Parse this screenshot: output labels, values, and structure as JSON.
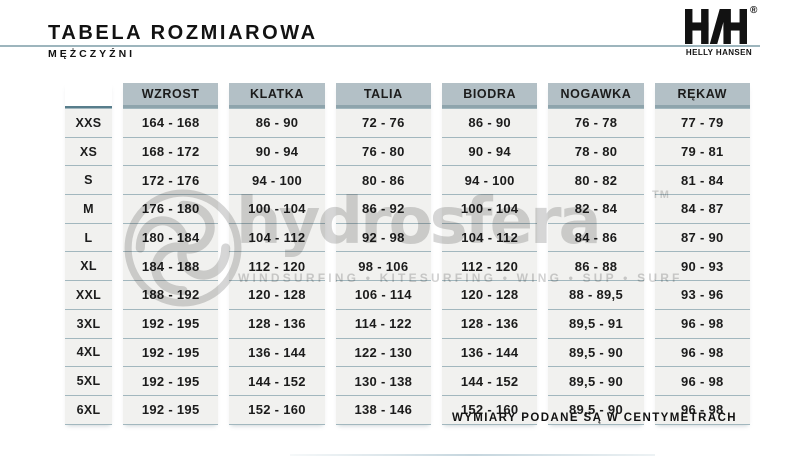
{
  "header": {
    "title": "TABELA ROZMIAROWA",
    "subtitle": "MĘŻCZYŹNI",
    "brand": {
      "logo": "helly-hansen-monogram",
      "name": "HELLY HANSEN",
      "registered": "®"
    }
  },
  "table": {
    "columns": [
      "WZROST",
      "KLATKA",
      "TALIA",
      "BIODRA",
      "NOGAWKA",
      "RĘKAW"
    ],
    "rows": [
      {
        "size": "XXS",
        "values": [
          "164 - 168",
          "86 - 90",
          "72 - 76",
          "86 - 90",
          "76 - 78",
          "77 - 79"
        ]
      },
      {
        "size": "XS",
        "values": [
          "168 - 172",
          "90 - 94",
          "76 - 80",
          "90 - 94",
          "78 - 80",
          "79 - 81"
        ]
      },
      {
        "size": "S",
        "values": [
          "172 - 176",
          "94 - 100",
          "80 - 86",
          "94 - 100",
          "80 - 82",
          "81 - 84"
        ]
      },
      {
        "size": "M",
        "values": [
          "176 - 180",
          "100 - 104",
          "86 - 92",
          "100 - 104",
          "82 - 84",
          "84 - 87"
        ]
      },
      {
        "size": "L",
        "values": [
          "180 - 184",
          "104 - 112",
          "92 - 98",
          "104 - 112",
          "84 - 86",
          "87 - 90"
        ]
      },
      {
        "size": "XL",
        "values": [
          "184 - 188",
          "112 - 120",
          "98 - 106",
          "112 - 120",
          "86 - 88",
          "90 - 93"
        ]
      },
      {
        "size": "XXL",
        "values": [
          "188 - 192",
          "120 - 128",
          "106 - 114",
          "120 - 128",
          "88 - 89,5",
          "93 - 96"
        ]
      },
      {
        "size": "3XL",
        "values": [
          "192 - 195",
          "128 - 136",
          "114 - 122",
          "128 - 136",
          "89,5 - 91",
          "96 - 98"
        ]
      },
      {
        "size": "4XL",
        "values": [
          "192 - 195",
          "136 - 144",
          "122 - 130",
          "136 - 144",
          "89,5 - 90",
          "96 - 98"
        ]
      },
      {
        "size": "5XL",
        "values": [
          "192 - 195",
          "144 - 152",
          "130 - 138",
          "144 - 152",
          "89,5 - 90",
          "96 - 98"
        ]
      },
      {
        "size": "6XL",
        "values": [
          "192 - 195",
          "152 - 160",
          "138 - 146",
          "152 - 160",
          "89,5 - 90",
          "96 - 98"
        ]
      }
    ],
    "footnote": "WYMIARY PODANE SĄ W CENTYMETRACH"
  },
  "watermark": {
    "name": "hydrosfera",
    "trademark": "TM",
    "tagline": "WINDSURFING • KITESURFING • WING • SUP • SURF",
    "logo": "hydrosfera-knot-circle"
  },
  "colors": {
    "header_cell_bg": "#b3c0c6",
    "header_cell_edge": "#8ea4ac",
    "cell_bg": "#f1f1ef",
    "row_line": "#a2b7be",
    "size_top_line": "#577d8b",
    "text": "#1c1c1c",
    "header_rule": "#9db5bd",
    "watermark_gray": "#d6d6d6"
  }
}
